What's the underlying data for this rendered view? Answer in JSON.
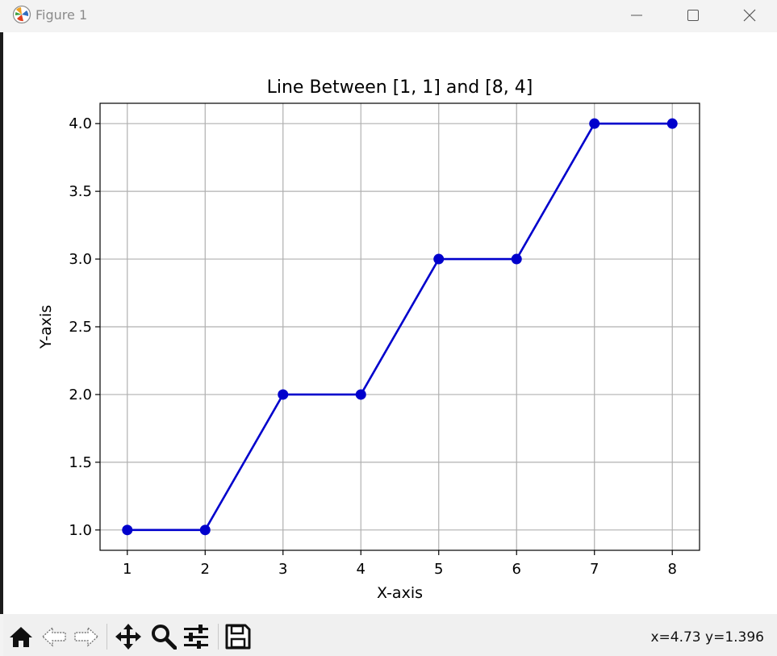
{
  "window": {
    "title": "Figure 1",
    "controls": {
      "minimize": "minimize-icon",
      "maximize": "maximize-icon",
      "close": "close-icon"
    }
  },
  "toolbar": {
    "buttons": [
      {
        "name": "home-button",
        "icon": "home-icon"
      },
      {
        "name": "back-button",
        "icon": "left-arrow-icon"
      },
      {
        "name": "forward-button",
        "icon": "right-arrow-icon"
      },
      {
        "name": "pan-button",
        "icon": "move-icon"
      },
      {
        "name": "zoom-button",
        "icon": "magnifier-icon"
      },
      {
        "name": "configure-subplots-button",
        "icon": "sliders-icon"
      },
      {
        "name": "save-button",
        "icon": "floppy-disk-icon"
      }
    ],
    "coords": "x=4.73 y=1.396"
  },
  "chart_data": {
    "type": "line",
    "title": "Line Between [1, 1] and [8, 4]",
    "xlabel": "X-axis",
    "ylabel": "Y-axis",
    "x": [
      1,
      2,
      3,
      4,
      5,
      6,
      7,
      8
    ],
    "series": [
      {
        "values": [
          1,
          1,
          2,
          2,
          3,
          3,
          4,
          4
        ],
        "color": "#0000cc",
        "marker": "circle"
      }
    ],
    "xlim": [
      0.65,
      8.35
    ],
    "ylim": [
      0.85,
      4.15
    ],
    "xticks": [
      1,
      2,
      3,
      4,
      5,
      6,
      7,
      8
    ],
    "xtick_labels": [
      "1",
      "2",
      "3",
      "4",
      "5",
      "6",
      "7",
      "8"
    ],
    "yticks": [
      1.0,
      1.5,
      2.0,
      2.5,
      3.0,
      3.5,
      4.0
    ],
    "ytick_labels": [
      "1.0",
      "1.5",
      "2.0",
      "2.5",
      "3.0",
      "3.5",
      "4.0"
    ],
    "grid": true
  }
}
